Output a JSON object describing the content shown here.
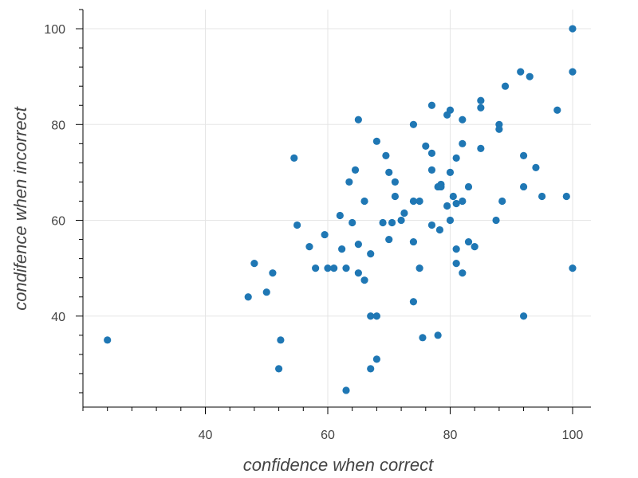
{
  "chart_data": {
    "type": "scatter",
    "title": "",
    "xlabel": "confidence when correct",
    "ylabel": "condifence when incorrect",
    "xlim": [
      20,
      103
    ],
    "ylim": [
      21,
      104
    ],
    "x_ticks": [
      40,
      60,
      80,
      100
    ],
    "y_ticks": [
      40,
      60,
      80,
      100
    ],
    "x_minor_step": 4,
    "y_minor_step": 4,
    "grid": true,
    "point_color": "#1f77b4",
    "series": [
      {
        "points": [
          [
            24,
            35
          ],
          [
            47,
            44
          ],
          [
            48,
            51
          ],
          [
            50,
            45
          ],
          [
            51,
            49
          ],
          [
            52,
            29
          ],
          [
            52.3,
            35
          ],
          [
            54.5,
            73
          ],
          [
            55,
            59
          ],
          [
            57,
            54.5
          ],
          [
            58,
            50
          ],
          [
            59.5,
            57
          ],
          [
            60,
            50
          ],
          [
            61,
            50
          ],
          [
            62,
            61
          ],
          [
            62.3,
            54
          ],
          [
            63,
            24.5
          ],
          [
            63,
            50
          ],
          [
            63.5,
            68
          ],
          [
            64,
            59.5
          ],
          [
            64.5,
            70.5
          ],
          [
            65,
            81
          ],
          [
            65,
            55
          ],
          [
            65,
            49
          ],
          [
            66,
            64
          ],
          [
            66,
            47.5
          ],
          [
            67,
            53
          ],
          [
            67,
            40
          ],
          [
            67,
            29
          ],
          [
            68,
            76.5
          ],
          [
            68,
            40
          ],
          [
            68,
            31
          ],
          [
            69,
            59.5
          ],
          [
            69.5,
            73.5
          ],
          [
            70,
            70
          ],
          [
            70,
            56
          ],
          [
            70.5,
            59.5
          ],
          [
            71,
            65
          ],
          [
            71,
            68
          ],
          [
            72,
            60
          ],
          [
            72.5,
            61.5
          ],
          [
            74,
            80
          ],
          [
            74,
            64
          ],
          [
            74,
            55.5
          ],
          [
            74,
            43
          ],
          [
            75,
            64
          ],
          [
            75,
            50
          ],
          [
            75.5,
            35.5
          ],
          [
            76,
            75.5
          ],
          [
            77,
            84
          ],
          [
            77,
            74
          ],
          [
            77,
            70.5
          ],
          [
            77,
            59
          ],
          [
            78,
            67
          ],
          [
            78,
            36
          ],
          [
            78.3,
            58
          ],
          [
            78.5,
            67.5
          ],
          [
            78.5,
            67
          ],
          [
            79.5,
            82
          ],
          [
            79.5,
            63
          ],
          [
            80,
            83
          ],
          [
            80,
            70
          ],
          [
            80,
            60
          ],
          [
            80.5,
            65
          ],
          [
            81,
            73
          ],
          [
            81,
            63.5
          ],
          [
            81,
            54
          ],
          [
            81,
            51
          ],
          [
            82,
            81
          ],
          [
            82,
            76
          ],
          [
            82,
            64
          ],
          [
            82,
            49
          ],
          [
            83,
            67
          ],
          [
            83,
            55.5
          ],
          [
            84,
            54.5
          ],
          [
            85,
            85
          ],
          [
            85,
            83.5
          ],
          [
            85,
            75
          ],
          [
            87.5,
            60
          ],
          [
            88,
            80
          ],
          [
            88,
            79
          ],
          [
            88.5,
            64
          ],
          [
            89,
            88
          ],
          [
            91.5,
            91
          ],
          [
            92,
            73.5
          ],
          [
            92,
            67
          ],
          [
            92,
            40
          ],
          [
            93,
            90
          ],
          [
            94,
            71
          ],
          [
            95,
            65
          ],
          [
            97.5,
            83
          ],
          [
            99,
            65
          ],
          [
            100,
            100
          ],
          [
            100,
            91
          ],
          [
            100,
            50
          ]
        ]
      }
    ]
  }
}
